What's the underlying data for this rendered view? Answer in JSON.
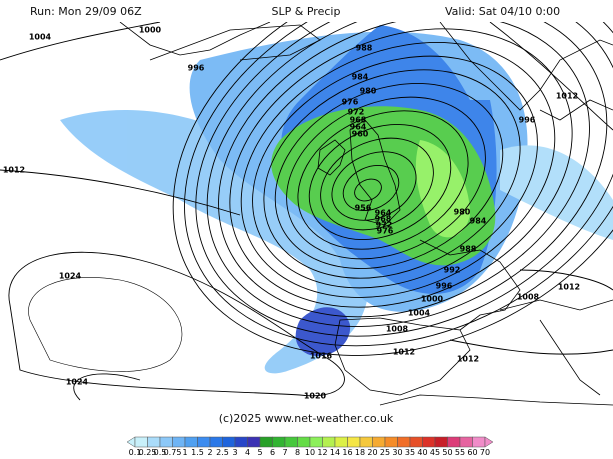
{
  "header": {
    "run": "Run: Mon 29/09 06Z",
    "title": "SLP & Precip",
    "valid": "Valid: Sat 04/10 0:00"
  },
  "isobar_labels": [
    1004,
    1000,
    996,
    988,
    984,
    980,
    976,
    972,
    968,
    964,
    960,
    956,
    964,
    968,
    972,
    976,
    980,
    984,
    988,
    992,
    996,
    1000,
    1004,
    1008,
    1012,
    1016,
    1012,
    1020,
    1024,
    1024,
    1012,
    1012,
    996,
    1008,
    1012
  ],
  "copyright": "(c)2025 www.net-weather.co.uk",
  "precip_scale": {
    "labels": [
      0.1,
      0.25,
      0.5,
      0.75,
      1,
      1.5,
      2,
      2.5,
      3,
      4,
      5,
      6,
      7,
      8,
      10,
      12,
      14,
      16,
      18,
      20,
      25,
      30,
      35,
      40,
      45,
      50,
      55,
      60,
      70
    ],
    "colors": [
      "#c8f0fa",
      "#aadcfa",
      "#8cc8f8",
      "#6eb4f5",
      "#50a0f0",
      "#3c8cf0",
      "#2a78e8",
      "#1e64dc",
      "#2846c8",
      "#3c32b4",
      "#28a028",
      "#32b432",
      "#46c83c",
      "#64dc46",
      "#8cf05a",
      "#b4f050",
      "#dcf046",
      "#f5e646",
      "#f5c83c",
      "#f5aa32",
      "#f58c28",
      "#f06e28",
      "#e65028",
      "#dc3228",
      "#c81e28",
      "#dc3c78",
      "#e664a0",
      "#f08cc8"
    ]
  }
}
